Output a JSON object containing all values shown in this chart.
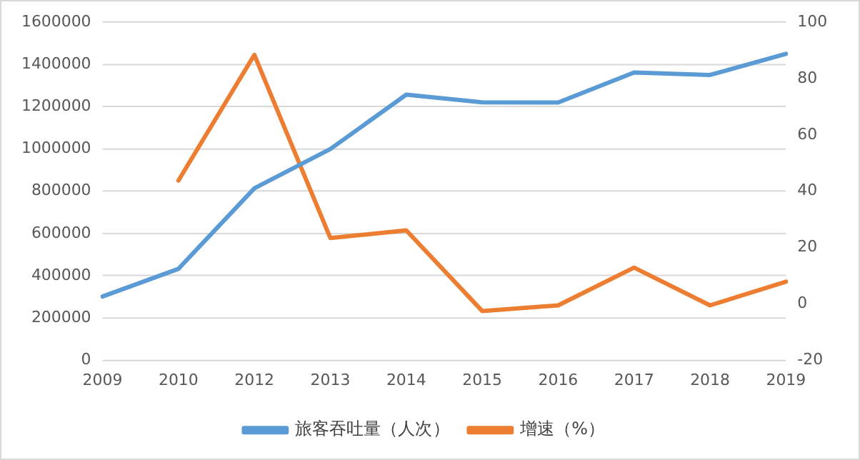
{
  "chart_data": {
    "type": "line",
    "categories": [
      "2009",
      "2010",
      "2012",
      "2013",
      "2014",
      "2015",
      "2016",
      "2017",
      "2018",
      "2019"
    ],
    "series": [
      {
        "name": "旅客吞吐量（人次）",
        "color": "#5b9bd5",
        "values": [
          302000,
          433000,
          814000,
          1000000,
          1257000,
          1221000,
          1220000,
          1362000,
          1350000,
          1450000
        ]
      },
      {
        "name": "增速（%）",
        "color": "#ed7d31",
        "axis": "y2",
        "values": [
          null,
          43.8,
          88.4,
          23.4,
          26.1,
          -2.5,
          -0.5,
          12.9,
          -0.5,
          7.9
        ]
      }
    ],
    "ylim": [
      0,
      1600000
    ],
    "yticks": [
      0,
      200000,
      400000,
      600000,
      800000,
      1000000,
      1200000,
      1400000,
      1600000
    ],
    "y2lim": [
      -20,
      100
    ],
    "y2ticks": [
      -20,
      0,
      20,
      40,
      60,
      80,
      100
    ],
    "grid": "y",
    "legend": "bottom",
    "marker": "none",
    "line_style": "solid"
  }
}
